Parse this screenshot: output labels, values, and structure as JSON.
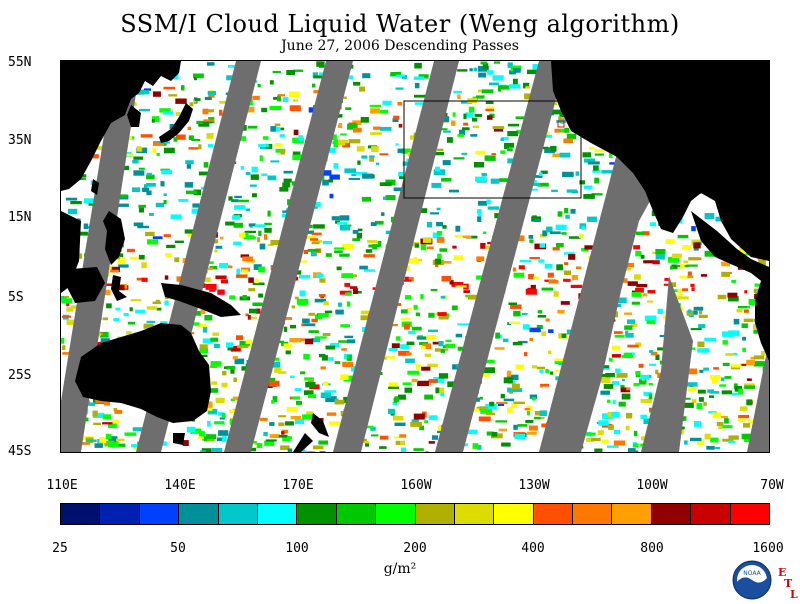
{
  "title": "SSM/I Cloud Liquid Water (Weng algorithm)",
  "subtitle": "June 27, 2006  Descending Passes",
  "lat_labels": [
    "55N",
    "35N",
    "15N",
    "5S",
    "25S",
    "45S"
  ],
  "lon_labels": [
    "110E",
    "140E",
    "170E",
    "160W",
    "130W",
    "100W",
    "70W"
  ],
  "colorbar": {
    "colors": [
      "#00106e",
      "#0020b0",
      "#0040ff",
      "#00909a",
      "#00c8c8",
      "#00ffff",
      "#009000",
      "#00c800",
      "#00ff00",
      "#b0b000",
      "#dcdc00",
      "#ffff00",
      "#ff5000",
      "#ff7800",
      "#ffa000",
      "#900000",
      "#c80000",
      "#ff0000"
    ],
    "tick_labels": [
      "25",
      "50",
      "100",
      "200",
      "400",
      "800",
      "1600"
    ]
  },
  "unit_label": "g/m²",
  "logo_text": "NOAA",
  "etl_letters": [
    "E",
    "T",
    "L"
  ],
  "colors": {
    "land": "#000000",
    "missing_swath": "#6e6e6e",
    "ocean_clear": "#ffffff"
  }
}
